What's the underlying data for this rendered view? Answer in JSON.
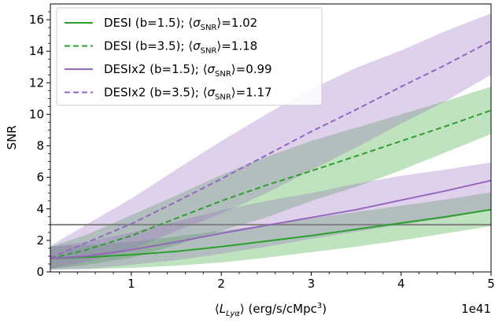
{
  "chart_data": {
    "type": "line",
    "xlabel": "⟨L_Lyα⟩ (erg/s/cMpc³)",
    "ylabel": "SNR",
    "x_offset_label": "1e41",
    "xlim": [
      0.1,
      5.0
    ],
    "ylim": [
      0,
      17
    ],
    "xticks": [
      1,
      2,
      3,
      4,
      5
    ],
    "yticks": [
      0,
      2,
      4,
      6,
      8,
      10,
      12,
      14,
      16
    ],
    "grid": false,
    "legend_position": "top-left",
    "reference_line": {
      "y": 3.0,
      "color": "#808080"
    },
    "series": [
      {
        "name": "DESI (b=1.5); ⟨σ_SNR⟩=1.02",
        "color": "#2ca02c",
        "style": "solid",
        "x": [
          0.1,
          0.5,
          1.0,
          1.5,
          2.0,
          2.5,
          3.0,
          3.5,
          4.0,
          4.5,
          5.0
        ],
        "values": [
          0.85,
          0.93,
          1.08,
          1.3,
          1.6,
          1.95,
          2.3,
          2.7,
          3.1,
          3.5,
          3.95
        ],
        "lower": [
          0.15,
          0.18,
          0.25,
          0.4,
          0.6,
          0.9,
          1.25,
          1.6,
          2.0,
          2.45,
          2.9
        ],
        "upper": [
          1.6,
          1.7,
          1.9,
          2.25,
          2.6,
          3.0,
          3.4,
          3.8,
          4.2,
          4.6,
          5.05
        ]
      },
      {
        "name": "DESI (b=3.5); ⟨σ_SNR⟩=1.18",
        "color": "#2ca02c",
        "style": "dashed",
        "x": [
          0.1,
          0.5,
          1.0,
          1.5,
          2.0,
          2.5,
          3.0,
          3.5,
          4.0,
          4.5,
          5.0
        ],
        "values": [
          0.85,
          1.4,
          2.3,
          3.4,
          4.5,
          5.5,
          6.4,
          7.35,
          8.3,
          9.25,
          10.25
        ],
        "lower": [
          0.2,
          0.45,
          0.9,
          1.7,
          2.6,
          3.45,
          4.5,
          5.4,
          6.45,
          7.6,
          8.75
        ],
        "upper": [
          1.6,
          2.35,
          3.6,
          4.85,
          6.15,
          7.3,
          8.3,
          9.15,
          10.0,
          10.85,
          11.75
        ]
      },
      {
        "name": "DESIx2 (b=1.5); ⟨σ_SNR⟩=0.99",
        "color": "#9467bd",
        "style": "solid",
        "x": [
          0.1,
          0.5,
          1.0,
          1.5,
          2.0,
          2.5,
          3.0,
          3.5,
          4.0,
          4.5,
          5.0
        ],
        "values": [
          0.85,
          1.0,
          1.4,
          1.9,
          2.45,
          2.95,
          3.45,
          3.95,
          4.55,
          5.15,
          5.8
        ],
        "lower": [
          0.15,
          0.2,
          0.45,
          0.75,
          1.15,
          1.6,
          2.1,
          2.55,
          3.0,
          3.4,
          3.95
        ],
        "upper": [
          1.6,
          1.9,
          2.5,
          3.2,
          3.9,
          4.5,
          5.0,
          5.6,
          6.1,
          6.5,
          6.95
        ]
      },
      {
        "name": "DESIx2 (b=3.5); ⟨σ_SNR⟩=1.17",
        "color": "#9467bd",
        "style": "dashed",
        "x": [
          0.1,
          0.5,
          1.0,
          1.5,
          2.0,
          2.5,
          3.0,
          3.5,
          4.0,
          4.5,
          5.0
        ],
        "values": [
          0.9,
          1.85,
          3.05,
          4.45,
          5.9,
          7.4,
          8.9,
          10.3,
          11.75,
          13.15,
          14.65
        ],
        "lower": [
          0.2,
          0.65,
          1.4,
          2.6,
          3.7,
          5.0,
          6.45,
          7.9,
          9.4,
          10.85,
          12.5
        ],
        "upper": [
          1.65,
          3.0,
          4.65,
          6.5,
          8.3,
          10.0,
          11.6,
          12.95,
          14.05,
          15.3,
          16.4
        ]
      }
    ],
    "legend_entries": [
      {
        "prefix": "DESI (b=1.5); ⟨",
        "sigma": "σ",
        "sub": "SNR",
        "suffix": "⟩=1.02"
      },
      {
        "prefix": "DESI (b=3.5); ⟨",
        "sigma": "σ",
        "sub": "SNR",
        "suffix": "⟩=1.18"
      },
      {
        "prefix": "DESIx2 (b=1.5); ⟨",
        "sigma": "σ",
        "sub": "SNR",
        "suffix": "⟩=0.99"
      },
      {
        "prefix": "DESIx2 (b=3.5); ⟨",
        "sigma": "σ",
        "sub": "SNR",
        "suffix": "⟩=1.17"
      }
    ],
    "xlabel_parts": {
      "open": "⟨",
      "L": "L",
      "sub": "Lyα",
      "rest": "⟩ (erg/s/cMpc",
      "sup": "3",
      "close": ")"
    }
  }
}
